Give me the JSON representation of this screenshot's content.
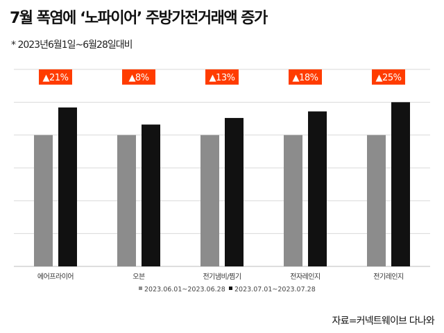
{
  "header": {
    "title": "7월 폭염에 ‘노파이어’ 주방가전거래액 증가",
    "subtitle": "* 2023년6월1일~6월28일대비"
  },
  "source": "자료=커넥트웨이브 다나와",
  "chart_data": {
    "type": "bar",
    "title": "7월 폭염에 ‘노파이어’ 주방가전거래액 증가",
    "categories": [
      "에어프라이어",
      "오븐",
      "전기냄비/찜기",
      "전자레인지",
      "전기레인지"
    ],
    "series": [
      {
        "name": "2023.06.01~2023.06.28",
        "color": "#8c8c8c",
        "values": [
          100,
          100,
          100,
          100,
          100
        ]
      },
      {
        "name": "2023.07.01~2023.07.28",
        "color": "#111111",
        "values": [
          121,
          108,
          113,
          118,
          125
        ]
      }
    ],
    "annotations": [
      "▲21%",
      "▲8%",
      "▲13%",
      "▲18%",
      "▲25%"
    ],
    "annotation_color": "#ff3c00",
    "ylim": [
      0,
      150
    ],
    "grid": true,
    "legend": "bottom-center",
    "xlabel": "",
    "ylabel": ""
  }
}
